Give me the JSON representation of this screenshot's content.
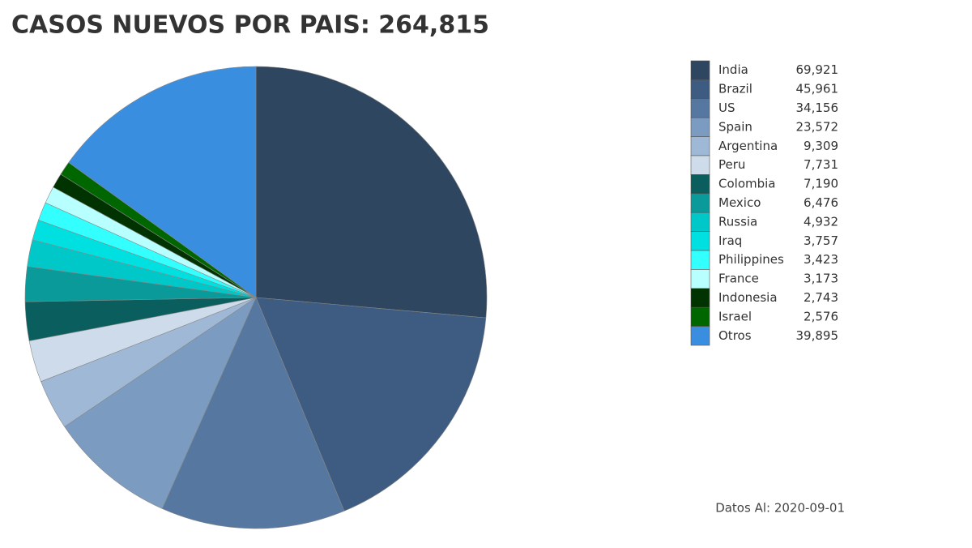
{
  "chart_data": {
    "type": "pie",
    "title": "CASOS NUEVOS POR PAIS: 264,815",
    "categories": [
      "India",
      "Brazil",
      "US",
      "Spain",
      "Argentina",
      "Peru",
      "Colombia",
      "Mexico",
      "Russia",
      "Iraq",
      "Philippines",
      "France",
      "Indonesia",
      "Israel",
      "Otros"
    ],
    "values": [
      69921,
      45961,
      34156,
      23572,
      9309,
      7731,
      7190,
      6476,
      4932,
      3757,
      3423,
      3173,
      2743,
      2576,
      39895
    ],
    "value_labels": [
      "69,921",
      "45,961",
      "34,156",
      "23,572",
      "9,309",
      "7,731",
      "7,190",
      "6,476",
      "4,932",
      "3,757",
      "3,423",
      "3,173",
      "2,743",
      "2,576",
      "39,895"
    ],
    "colors": [
      "#2e4660",
      "#3e5c82",
      "#5677a0",
      "#7b9cc0",
      "#9fb8d6",
      "#cddbeb",
      "#0b5e5e",
      "#0a9a9a",
      "#00c8c8",
      "#00e0e0",
      "#33ffff",
      "#b8ffff",
      "#003300",
      "#006600",
      "#3a8ee0"
    ],
    "legend": "right",
    "annotation": "Datos Al: 2020-09-01"
  }
}
